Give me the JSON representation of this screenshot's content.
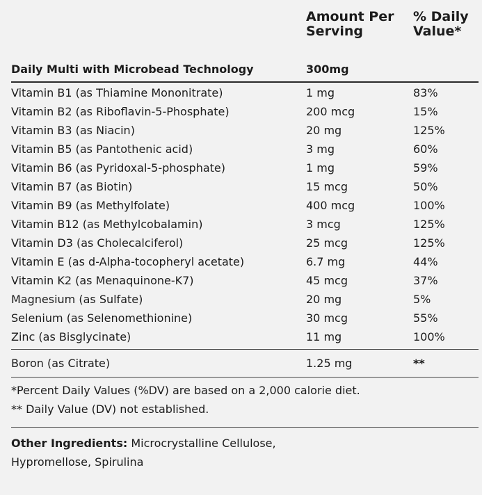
{
  "header": {
    "amount_line1": "Amount Per",
    "amount_line2": "Serving",
    "dv_line1": "% Daily",
    "dv_line2": "Value*"
  },
  "section": {
    "name": "Daily Multi with Microbead Technology",
    "amount": "300mg"
  },
  "nutrients": [
    {
      "name": "Vitamin B1 (as Thiamine Mononitrate)",
      "amount": "1 mg",
      "dv": "83%"
    },
    {
      "name": "Vitamin B2 (as Riboflavin-5-Phosphate)",
      "amount": "200 mcg",
      "dv": "15%"
    },
    {
      "name": "Vitamin B3 (as Niacin)",
      "amount": "20 mg",
      "dv": "125%"
    },
    {
      "name": "Vitamin B5 (as Pantothenic acid)",
      "amount": "3 mg",
      "dv": "60%"
    },
    {
      "name": "Vitamin B6 (as Pyridoxal-5-phosphate)",
      "amount": "1 mg",
      "dv": "59%"
    },
    {
      "name": "Vitamin B7 (as Biotin)",
      "amount": "15 mcg",
      "dv": "50%"
    },
    {
      "name": "Vitamin B9 (as Methylfolate)",
      "amount": "400 mcg",
      "dv": "100%"
    },
    {
      "name": "Vitamin B12 (as Methylcobalamin)",
      "amount": "3 mcg",
      "dv": "125%"
    },
    {
      "name": "Vitamin D3 (as Cholecalciferol)",
      "amount": "25 mcg",
      "dv": "125%"
    },
    {
      "name": "Vitamin E (as d-Alpha-tocopheryl acetate)",
      "amount": "6.7 mg",
      "dv": "44%"
    },
    {
      "name": "Vitamin K2 (as Menaquinone-K7)",
      "amount": "45 mcg",
      "dv": "37%"
    },
    {
      "name": "Magnesium (as Sulfate)",
      "amount": "20 mg",
      "dv": "5%"
    },
    {
      "name": "Selenium (as Selenomethionine)",
      "amount": "30 mcg",
      "dv": "55%"
    },
    {
      "name": "Zinc (as Bisglycinate)",
      "amount": "11 mg",
      "dv": "100%"
    }
  ],
  "boron": {
    "name": "Boron (as Citrate)",
    "amount": "1.25 mg",
    "dv": "**"
  },
  "footnotes": {
    "percent_dv": "*Percent Daily Values (%DV) are based on a 2,000 calorie diet.",
    "not_established": "** Daily Value (DV) not established."
  },
  "other_ingredients": {
    "label": "Other Ingredients:",
    "text": " Microcrystalline Cellulose, Hypromellose, Spirulina"
  }
}
